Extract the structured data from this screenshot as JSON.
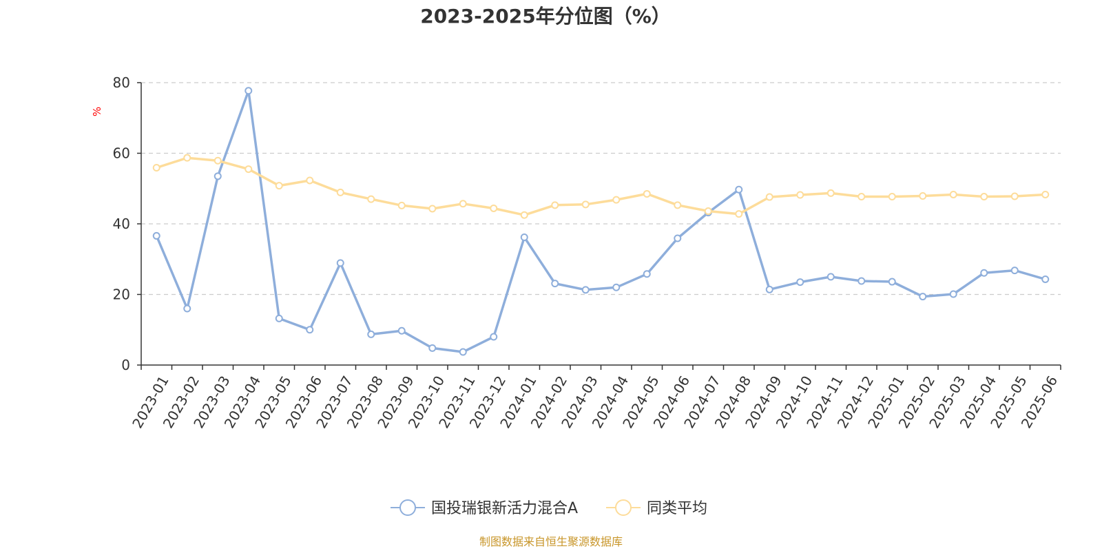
{
  "chart_data": {
    "type": "line",
    "title": "2023-2025年分位图（%）",
    "ylabel": "%",
    "xlabel": "",
    "ylim": [
      0,
      80
    ],
    "yticks": [
      0,
      20,
      40,
      60,
      80
    ],
    "grid": true,
    "legend_position": "bottom",
    "categories": [
      "2023-01",
      "2023-02",
      "2023-03",
      "2023-04",
      "2023-05",
      "2023-06",
      "2023-07",
      "2023-08",
      "2023-09",
      "2023-10",
      "2023-11",
      "2023-12",
      "2024-01",
      "2024-02",
      "2024-03",
      "2024-04",
      "2024-05",
      "2024-06",
      "2024-07",
      "2024-08",
      "2024-09",
      "2024-10",
      "2024-11",
      "2024-12",
      "2025-01",
      "2025-02",
      "2025-03",
      "2025-04",
      "2025-05",
      "2025-06"
    ],
    "series": [
      {
        "name": "国投瑞银新活力混合A",
        "color": "#8eaedb",
        "values": [
          36.6,
          16.0,
          53.5,
          77.7,
          13.2,
          10.0,
          28.9,
          8.7,
          9.7,
          4.8,
          3.7,
          8.0,
          36.2,
          23.1,
          21.3,
          22.0,
          25.8,
          35.9,
          43.2,
          49.7,
          21.4,
          23.5,
          25.0,
          23.8,
          23.6,
          19.4,
          20.1,
          26.1,
          26.8,
          24.3
        ]
      },
      {
        "name": "同类平均",
        "color": "#fddc9a",
        "values": [
          55.9,
          58.7,
          57.9,
          55.5,
          50.8,
          52.3,
          48.9,
          47.0,
          45.2,
          44.3,
          45.7,
          44.4,
          42.5,
          45.3,
          45.5,
          46.8,
          48.5,
          45.3,
          43.6,
          42.8,
          47.6,
          48.2,
          48.7,
          47.7,
          47.7,
          47.9,
          48.3,
          47.7,
          47.8,
          48.3
        ]
      }
    ]
  },
  "source_note": "制图数据来自恒生聚源数据库"
}
